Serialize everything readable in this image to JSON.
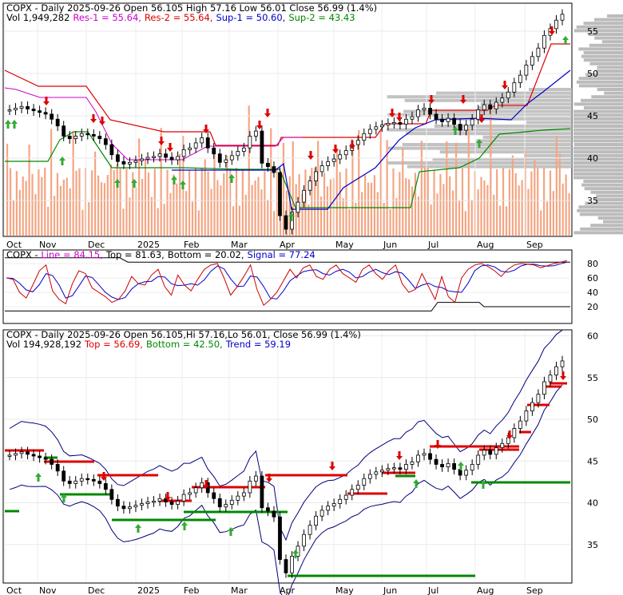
{
  "panels": {
    "top": {
      "header_line1": {
        "ticker": "COPX",
        "rest": " - Daily 2025-09-26 Open 56.105  High 57.16  Low 56.01  Close 56.99 (1.4%)"
      },
      "header_line2": {
        "vol": "Vol 1,949,282",
        "res1": "Res-1 = 55.64,",
        "res2": "Res-2 = 55.64,",
        "sup1": "Sup-1 = 50.60,",
        "sup2": "Sup-2 = 43.43"
      },
      "yticks": [
        "55",
        "50",
        "45",
        "40",
        "35"
      ],
      "xticks": [
        "Oct",
        "Nov",
        "Dec",
        "2025",
        "Feb",
        "Mar",
        "Apr",
        "May",
        "Jun",
        "Jul",
        "Aug",
        "Sep"
      ]
    },
    "mid": {
      "header": {
        "ticker": "COPX",
        "line": "Line = 84.15,",
        "top": "Top = 81.63,",
        "bottom": "Bottom = 20.02,",
        "signal": "Signal = 77.24"
      },
      "yticks": [
        "80",
        "60",
        "40",
        "20"
      ]
    },
    "bottom": {
      "header_line1": {
        "ticker": "COPX",
        "rest": " - Daily 2025-09-26 Open 56.105,Hi 57.16,Lo 56.01,  Close 56.99 (1.4%)"
      },
      "header_line2": {
        "vol": "Vol 194,928,192",
        "top": "Top = 56.69,",
        "bottom": "Bottom = 42.50,",
        "trend": "Trend = 59.19"
      },
      "yticks": [
        "60",
        "55",
        "50",
        "45",
        "40",
        "35"
      ],
      "xticks": [
        "Oct",
        "Nov",
        "Dec",
        "2025",
        "Feb",
        "Mar",
        "Apr",
        "May",
        "Jun",
        "Jul",
        "Aug",
        "Sep"
      ]
    }
  },
  "colors": {
    "resistance": "#dd0000",
    "support": "#008800",
    "sup1": "#0000cc",
    "band": "#000080",
    "line": "#cc00cc",
    "volume": "#f4a582",
    "profile": "#bbbbbb",
    "up_arrow": "#33aa33",
    "down_arrow": "#dd0000"
  },
  "chart_data": {
    "type": "candlestick",
    "ticker": "COPX",
    "date": "2025-09-26",
    "open": 56.105,
    "high": 57.16,
    "low": 56.01,
    "close": 56.99,
    "change_pct": 1.4,
    "volume": 1949282,
    "res1": 55.64,
    "res2": 55.64,
    "sup1": 50.6,
    "sup2": 43.43,
    "months": [
      "Oct",
      "Nov",
      "Dec",
      "2025",
      "Feb",
      "Mar",
      "Apr",
      "May",
      "Jun",
      "Jul",
      "Aug",
      "Sep"
    ],
    "close_series": [
      45.7,
      45.9,
      46.1,
      45.8,
      45.6,
      45.4,
      45.2,
      44.6,
      43.8,
      42.6,
      42.3,
      42.6,
      42.9,
      42.8,
      42.6,
      42.3,
      41.6,
      40.4,
      39.6,
      39.3,
      39.5,
      39.7,
      39.9,
      40.1,
      40.2,
      40.5,
      40.1,
      39.8,
      40.2,
      41.0,
      41.2,
      41.8,
      42.4,
      41.2,
      40.5,
      39.5,
      39.8,
      40.3,
      40.8,
      41.2,
      42.6,
      43.2,
      39.4,
      39.0,
      38.3,
      33.2,
      31.6,
      33.6,
      34.8,
      36.2,
      37.3,
      38.4,
      39.1,
      39.6,
      39.9,
      40.4,
      40.9,
      41.6,
      42.1,
      42.9,
      43.4,
      43.7,
      43.9,
      44.1,
      44.2,
      44.0,
      44.6,
      44.9,
      45.7,
      45.9,
      45.2,
      44.6,
      44.3,
      44.7,
      44.0,
      43.3,
      43.9,
      44.6,
      45.7,
      46.3,
      45.8,
      46.6,
      47.1,
      47.8,
      48.9,
      49.8,
      51.0,
      52.0,
      53.0,
      54.5,
      55.3,
      56.3,
      56.99
    ],
    "series": [
      {
        "name": "Res-1",
        "value": 55.64
      },
      {
        "name": "Sup-1",
        "value": 50.6
      },
      {
        "name": "Sup-2",
        "value": 43.43
      }
    ],
    "oscillator": {
      "line": 84.15,
      "top": 81.63,
      "bottom": 20.02,
      "signal": 77.24,
      "line_series": [
        60,
        58,
        40,
        32,
        50,
        70,
        78,
        42,
        30,
        24,
        52,
        70,
        66,
        46,
        40,
        34,
        26,
        30,
        42,
        62,
        52,
        50,
        64,
        72,
        48,
        36,
        64,
        50,
        42,
        58,
        72,
        78,
        80,
        60,
        36,
        48,
        62,
        78,
        44,
        22,
        30,
        40,
        56,
        72,
        60,
        74,
        78,
        62,
        58,
        72,
        78,
        66,
        60,
        54,
        72,
        78,
        66,
        58,
        70,
        78,
        52,
        40,
        44,
        66,
        48,
        30,
        62,
        34,
        26,
        60,
        72,
        78,
        80,
        76,
        70,
        62,
        72,
        78,
        80,
        79,
        78,
        74,
        77,
        80,
        82,
        84
      ]
    },
    "bands": {
      "top": 56.69,
      "bottom": 42.5,
      "trend": 59.19
    },
    "volume_total": 194928192
  }
}
